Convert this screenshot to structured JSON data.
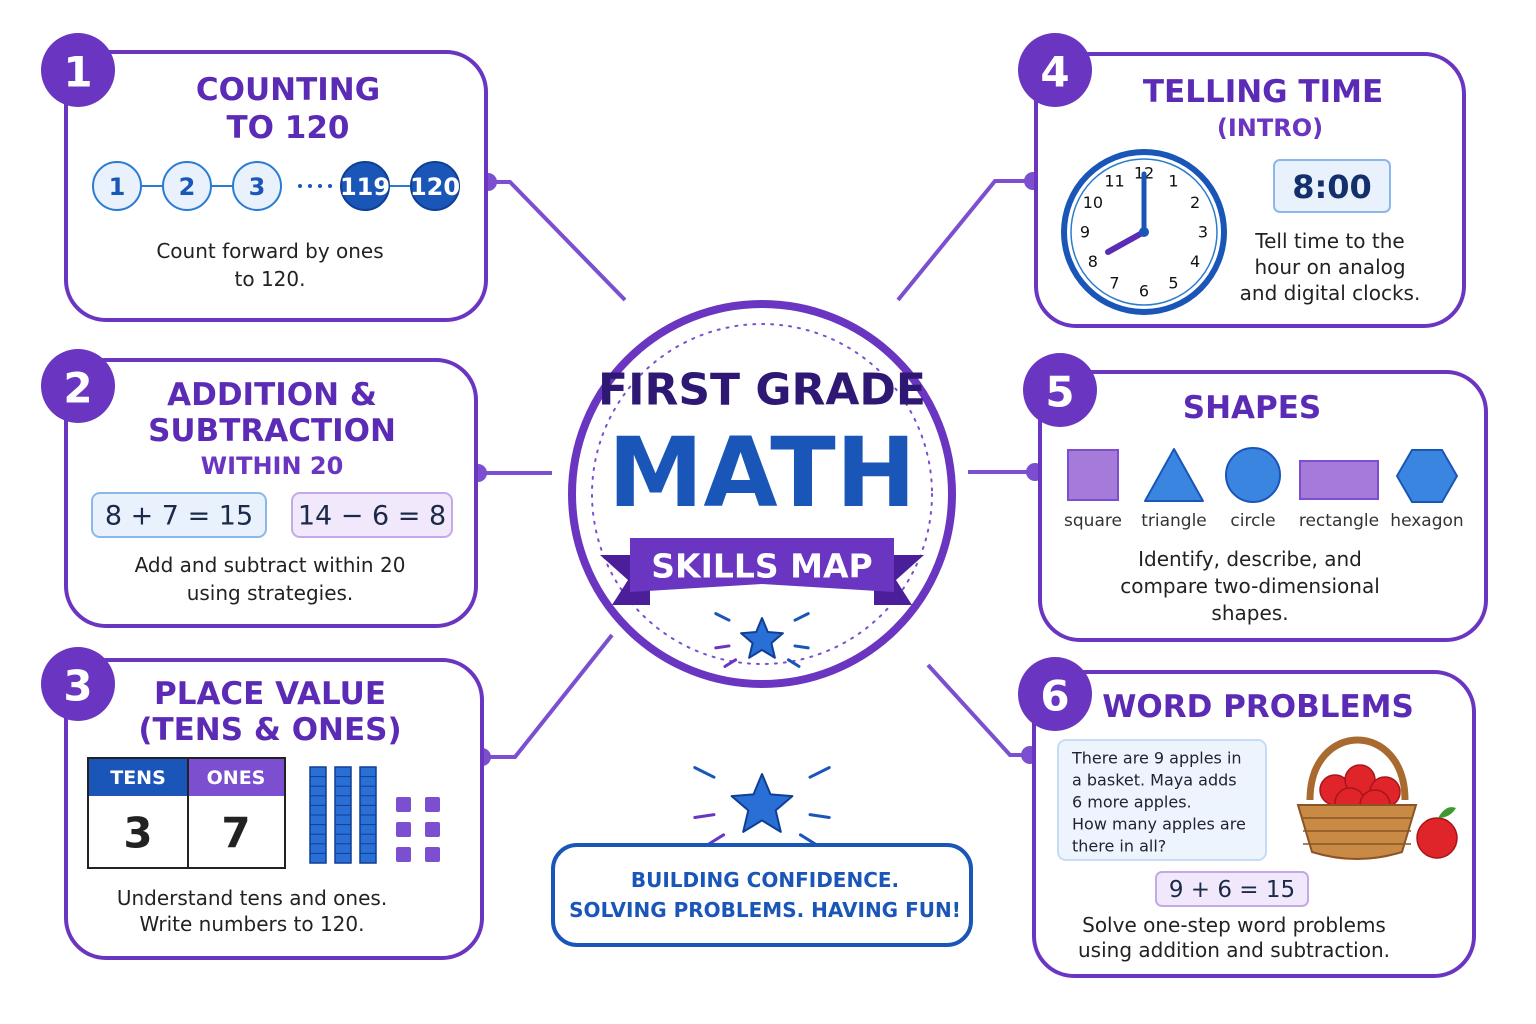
{
  "center": {
    "line1": "FIRST GRADE",
    "line2": "MATH",
    "ribbon": "SKILLS MAP"
  },
  "footer": {
    "line1": "BUILDING CONFIDENCE.",
    "line2": "SOLVING PROBLEMS. HAVING FUN!"
  },
  "cards": [
    {
      "number": "1",
      "title": [
        "COUNTING",
        "TO 120"
      ],
      "sequence": [
        "1",
        "2",
        "3",
        "119",
        "120"
      ],
      "description": [
        "Count forward by ones",
        "to 120."
      ]
    },
    {
      "number": "2",
      "title": [
        "ADDITION &",
        "SUBTRACTION"
      ],
      "subtitle": "WITHIN 20",
      "equations": [
        "8 + 7 = 15",
        "14 − 6 = 8"
      ],
      "description": [
        "Add and subtract within 20",
        "using strategies."
      ]
    },
    {
      "number": "3",
      "title": [
        "PLACE VALUE",
        "(TENS & ONES)"
      ],
      "table": {
        "headers": [
          "TENS",
          "ONES"
        ],
        "values": [
          "3",
          "7"
        ]
      },
      "description": [
        "Understand tens and ones.",
        "Write numbers to 120."
      ]
    },
    {
      "number": "4",
      "title": [
        "TELLING TIME",
        "(INTRO)"
      ],
      "clock_numbers": [
        "12",
        "1",
        "2",
        "3",
        "4",
        "5",
        "6",
        "7",
        "8",
        "9",
        "10",
        "11"
      ],
      "digital": "8:00",
      "description": [
        "Tell time to the",
        "hour on analog",
        "and digital clocks."
      ]
    },
    {
      "number": "5",
      "title": [
        "SHAPES"
      ],
      "shapes": [
        "square",
        "triangle",
        "circle",
        "rectangle",
        "hexagon"
      ],
      "description": [
        "Identify, describe, and",
        "compare two-dimensional",
        "shapes."
      ]
    },
    {
      "number": "6",
      "title": [
        "WORD PROBLEMS"
      ],
      "problem": [
        "There are 9 apples in",
        "a basket. Maya adds",
        "6 more apples.",
        "How many apples are",
        "there in all?"
      ],
      "equation": "9 + 6 = 15",
      "description": [
        "Solve one-step word problems",
        "using addition and subtraction."
      ]
    }
  ]
}
